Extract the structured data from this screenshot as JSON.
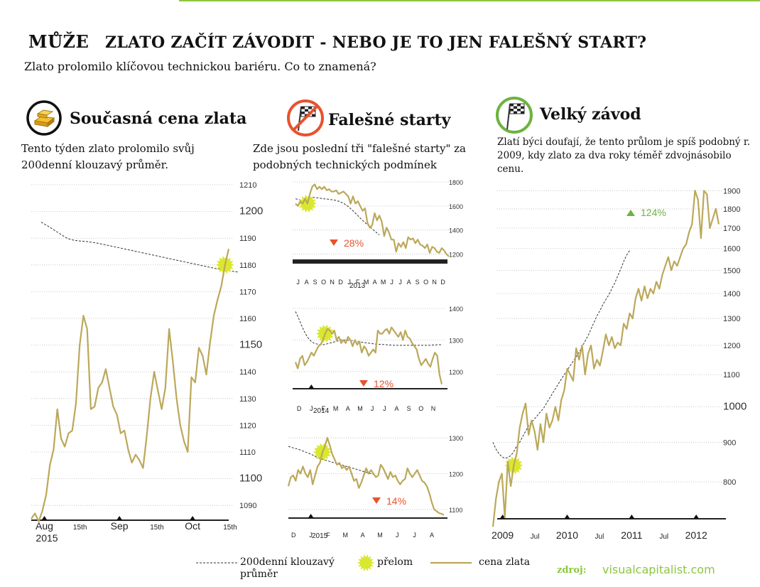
{
  "header": {
    "prefix": "MŮŽE",
    "title": "ZLATO ZAČÍT ZÁVODIT - NEBO JE TO JEN FALEŠNÝ START?",
    "subtitle": "Zlato prolomilo klíčovou technickou bariéru. Co to znamená?"
  },
  "sections": {
    "current": {
      "title": "Současná cena zlata",
      "text": "Tento týden zlato prolomilo svůj 200denní klouzavý průměr.",
      "icon": "gold-bars-icon"
    },
    "false_starts": {
      "title": "Falešné starty",
      "text": "Zde jsou poslední tři \"falešné starty\" za podobných technických podmínek",
      "icon": "checkered-flag-crossed-icon"
    },
    "big_race": {
      "title": "Velký závod",
      "text": "Zlatí býci doufají, že tento průlom je spíš podobný r. 2009, kdy zlato za dva roky téměř zdvojnásobilo cenu.",
      "icon": "checkered-flag-icon"
    }
  },
  "legend": {
    "ma": "200denní klouzavý průměr",
    "breakout": "přelom",
    "price": "cena zlata"
  },
  "source": {
    "label": "zdroj:",
    "value": "visualcapitalist.com"
  },
  "colors": {
    "price": "#bba85a",
    "breakout": "#d9e82f",
    "down": "#e8522d",
    "up": "#6db33f",
    "ma": "#333333"
  },
  "chart_data": [
    {
      "type": "line",
      "title": "Současná cena zlata",
      "ylim": [
        1085,
        1210
      ],
      "yticks": [
        1090,
        1100,
        1110,
        1120,
        1130,
        1140,
        1150,
        1160,
        1170,
        1180,
        1190,
        1200,
        1210
      ],
      "xticks": [
        "Aug",
        "15th",
        "Sep",
        "15th",
        "Oct",
        "15th"
      ],
      "xyear": "2015",
      "series": [
        {
          "values": [
            1085,
            1087,
            1084,
            1088,
            1094,
            1105,
            1111,
            1126,
            1115,
            1112,
            1117,
            1118,
            1128,
            1150,
            1161,
            1156,
            1126,
            1127,
            1134,
            1136,
            1141,
            1134,
            1127,
            1124,
            1117,
            1118,
            1111,
            1106,
            1109,
            1107,
            1104,
            1116,
            1130,
            1140,
            1133,
            1126,
            1134,
            1156,
            1144,
            1130,
            1120,
            1114,
            1110,
            1138,
            1136,
            1149,
            1146,
            1139,
            1151,
            1161,
            1167,
            1172,
            1180,
            1186
          ]
        },
        {
          "name": "200denní klouzavý průměr",
          "values": [
            1196,
            1195.2,
            1194.4,
            1193.5,
            1192.6,
            1191.7,
            1190.8,
            1190.0,
            1189.5,
            1189.2,
            1189.0,
            1188.9,
            1188.8,
            1188.6,
            1188.4,
            1188.2,
            1187.9,
            1187.6,
            1187.3,
            1187.0,
            1186.7,
            1186.4,
            1186.1,
            1185.8,
            1185.5,
            1185.2,
            1184.9,
            1184.6,
            1184.3,
            1184.0,
            1183.7,
            1183.4,
            1183.1,
            1182.8,
            1182.5,
            1182.2,
            1181.9,
            1181.6,
            1181.3,
            1181.0,
            1180.7,
            1180.4,
            1180.1,
            1179.8,
            1179.5,
            1179.2,
            1178.9,
            1178.6,
            1178.4,
            1178.1,
            1177.9,
            1177.7,
            1177.5,
            1177.3
          ]
        }
      ]
    },
    {
      "type": "line",
      "ylim": [
        1150,
        1800
      ],
      "yticks": [
        1200,
        1400,
        1600,
        1800
      ],
      "xticks": [
        "J",
        "A",
        "S",
        "O",
        "N",
        "D",
        "J",
        "F",
        "M",
        "A",
        "M",
        "J",
        "J",
        "A",
        "S",
        "O",
        "N",
        "D"
      ],
      "xyear": "2013",
      "annotation": "28%",
      "series": [
        {
          "values": [
            1620,
            1600,
            1640,
            1620,
            1660,
            1620,
            1700,
            1760,
            1780,
            1740,
            1760,
            1740,
            1760,
            1730,
            1740,
            1720,
            1720,
            1730,
            1700,
            1710,
            1720,
            1700,
            1680,
            1620,
            1680,
            1620,
            1640,
            1600,
            1560,
            1580,
            1460,
            1420,
            1440,
            1540,
            1480,
            1520,
            1470,
            1350,
            1420,
            1380,
            1320,
            1320,
            1220,
            1290,
            1260,
            1300,
            1250,
            1340,
            1320,
            1330,
            1290,
            1320,
            1280,
            1270,
            1250,
            1280,
            1210,
            1260,
            1250,
            1220,
            1210,
            1250,
            1230,
            1200,
            1180
          ]
        },
        {
          "name": "200denní klouzavý průměr",
          "values": [
            1660,
            1655,
            1650,
            1650,
            1655,
            1662,
            1668,
            1670,
            1670,
            1668,
            1665,
            1662,
            1660,
            1658,
            1655,
            1652,
            1650,
            1645,
            1640,
            1632,
            1622,
            1610,
            1595,
            1578,
            1560,
            1540,
            1520,
            1500,
            1480,
            1462,
            1445,
            1428,
            1410,
            1392,
            1375,
            1360
          ]
        }
      ]
    },
    {
      "type": "line",
      "ylim": [
        1150,
        1400
      ],
      "yticks": [
        1200,
        1300,
        1400
      ],
      "xticks": [
        "D",
        "J",
        "F",
        "M",
        "A",
        "M",
        "J",
        "J",
        "A",
        "S",
        "O",
        "N"
      ],
      "xyear": "2014",
      "annotation": "12%",
      "series": [
        {
          "values": [
            1230,
            1210,
            1240,
            1250,
            1220,
            1230,
            1245,
            1260,
            1250,
            1265,
            1280,
            1285,
            1300,
            1320,
            1335,
            1330,
            1320,
            1330,
            1300,
            1310,
            1290,
            1300,
            1290,
            1310,
            1300,
            1280,
            1300,
            1285,
            1295,
            1260,
            1280,
            1270,
            1250,
            1260,
            1270,
            1260,
            1330,
            1320,
            1320,
            1330,
            1335,
            1320,
            1340,
            1330,
            1320,
            1310,
            1325,
            1300,
            1330,
            1310,
            1305,
            1290,
            1280,
            1270,
            1240,
            1220,
            1230,
            1240,
            1225,
            1215,
            1240,
            1260,
            1250,
            1190,
            1160
          ]
        },
        {
          "name": "200denní klouzavý průměr",
          "values": [
            1390,
            1375,
            1358,
            1340,
            1325,
            1312,
            1302,
            1295,
            1290,
            1288,
            1286,
            1285,
            1285,
            1286,
            1288,
            1290,
            1292,
            1294,
            1296,
            1298,
            1300,
            1300,
            1300,
            1299,
            1298,
            1297,
            1296,
            1295,
            1294,
            1293,
            1292,
            1291,
            1290,
            1289,
            1288,
            1287,
            1287,
            1286,
            1286,
            1285,
            1285,
            1284,
            1284,
            1283,
            1283,
            1283,
            1283,
            1283,
            1283,
            1283,
            1283,
            1283,
            1283,
            1283,
            1283,
            1283,
            1283,
            1283,
            1283,
            1283,
            1284,
            1284,
            1285,
            1285,
            1285
          ]
        }
      ]
    },
    {
      "type": "line",
      "ylim": [
        1080,
        1310
      ],
      "yticks": [
        1100,
        1200,
        1300
      ],
      "xticks": [
        "D",
        "J",
        "F",
        "M",
        "A",
        "M",
        "J",
        "J",
        "A"
      ],
      "xyear": "2015",
      "annotation": "14%",
      "series": [
        {
          "values": [
            1165,
            1190,
            1195,
            1180,
            1210,
            1200,
            1220,
            1200,
            1190,
            1210,
            1170,
            1195,
            1220,
            1230,
            1260,
            1275,
            1300,
            1280,
            1255,
            1240,
            1225,
            1230,
            1215,
            1220,
            1210,
            1220,
            1200,
            1180,
            1185,
            1160,
            1175,
            1195,
            1215,
            1200,
            1210,
            1200,
            1190,
            1195,
            1225,
            1215,
            1200,
            1185,
            1205,
            1190,
            1195,
            1180,
            1170,
            1180,
            1185,
            1215,
            1200,
            1190,
            1200,
            1210,
            1195,
            1180,
            1175,
            1165,
            1145,
            1120,
            1100,
            1095,
            1090,
            1088,
            1085
          ]
        },
        {
          "name": "200denní klouzavý průměr",
          "values": [
            1276,
            1274,
            1272,
            1270,
            1268,
            1266,
            1263,
            1260,
            1258,
            1255,
            1252,
            1248,
            1245,
            1242,
            1240,
            1238,
            1236,
            1234,
            1232,
            1230,
            1228,
            1226,
            1224,
            1222,
            1220,
            1218,
            1216,
            1214,
            1212,
            1210,
            1208,
            1206,
            1204,
            1202,
            1200,
            1198,
            1196
          ]
        }
      ]
    },
    {
      "type": "line",
      "title": "Velký závod",
      "yscale": "log",
      "ylim": [
        720,
        1950
      ],
      "yticks": [
        800,
        900,
        1000,
        1100,
        1200,
        1300,
        1400,
        1500,
        1600,
        1700,
        1800,
        1900
      ],
      "xticks": [
        "2009",
        "Jul",
        "2010",
        "Jul",
        "2011",
        "Jul",
        "2012"
      ],
      "annotation": "124%",
      "series": [
        {
          "values": [
            700,
            760,
            800,
            820,
            720,
            850,
            790,
            840,
            870,
            940,
            980,
            1010,
            920,
            960,
            930,
            880,
            950,
            900,
            980,
            940,
            960,
            1000,
            960,
            1020,
            1050,
            1120,
            1100,
            1080,
            1190,
            1150,
            1200,
            1100,
            1170,
            1200,
            1120,
            1150,
            1130,
            1180,
            1240,
            1200,
            1230,
            1190,
            1210,
            1200,
            1280,
            1260,
            1320,
            1300,
            1380,
            1420,
            1370,
            1430,
            1380,
            1420,
            1400,
            1450,
            1420,
            1480,
            1520,
            1560,
            1500,
            1540,
            1520,
            1560,
            1600,
            1620,
            1680,
            1720,
            1900,
            1850,
            1650,
            1900,
            1880,
            1700,
            1750,
            1800,
            1720
          ]
        },
        {
          "name": "200denní klouzavý průměr",
          "values": [
            900,
            882,
            870,
            862,
            858,
            860,
            865,
            875,
            890,
            900,
            915,
            930,
            945,
            955,
            965,
            975,
            985,
            995,
            1010,
            1025,
            1040,
            1055,
            1070,
            1085,
            1100,
            1115,
            1130,
            1145,
            1160,
            1175,
            1195,
            1215,
            1235,
            1260,
            1285,
            1310,
            1330,
            1355,
            1375,
            1395,
            1420,
            1445,
            1475,
            1505,
            1540,
            1570,
            1590
          ]
        }
      ]
    }
  ]
}
